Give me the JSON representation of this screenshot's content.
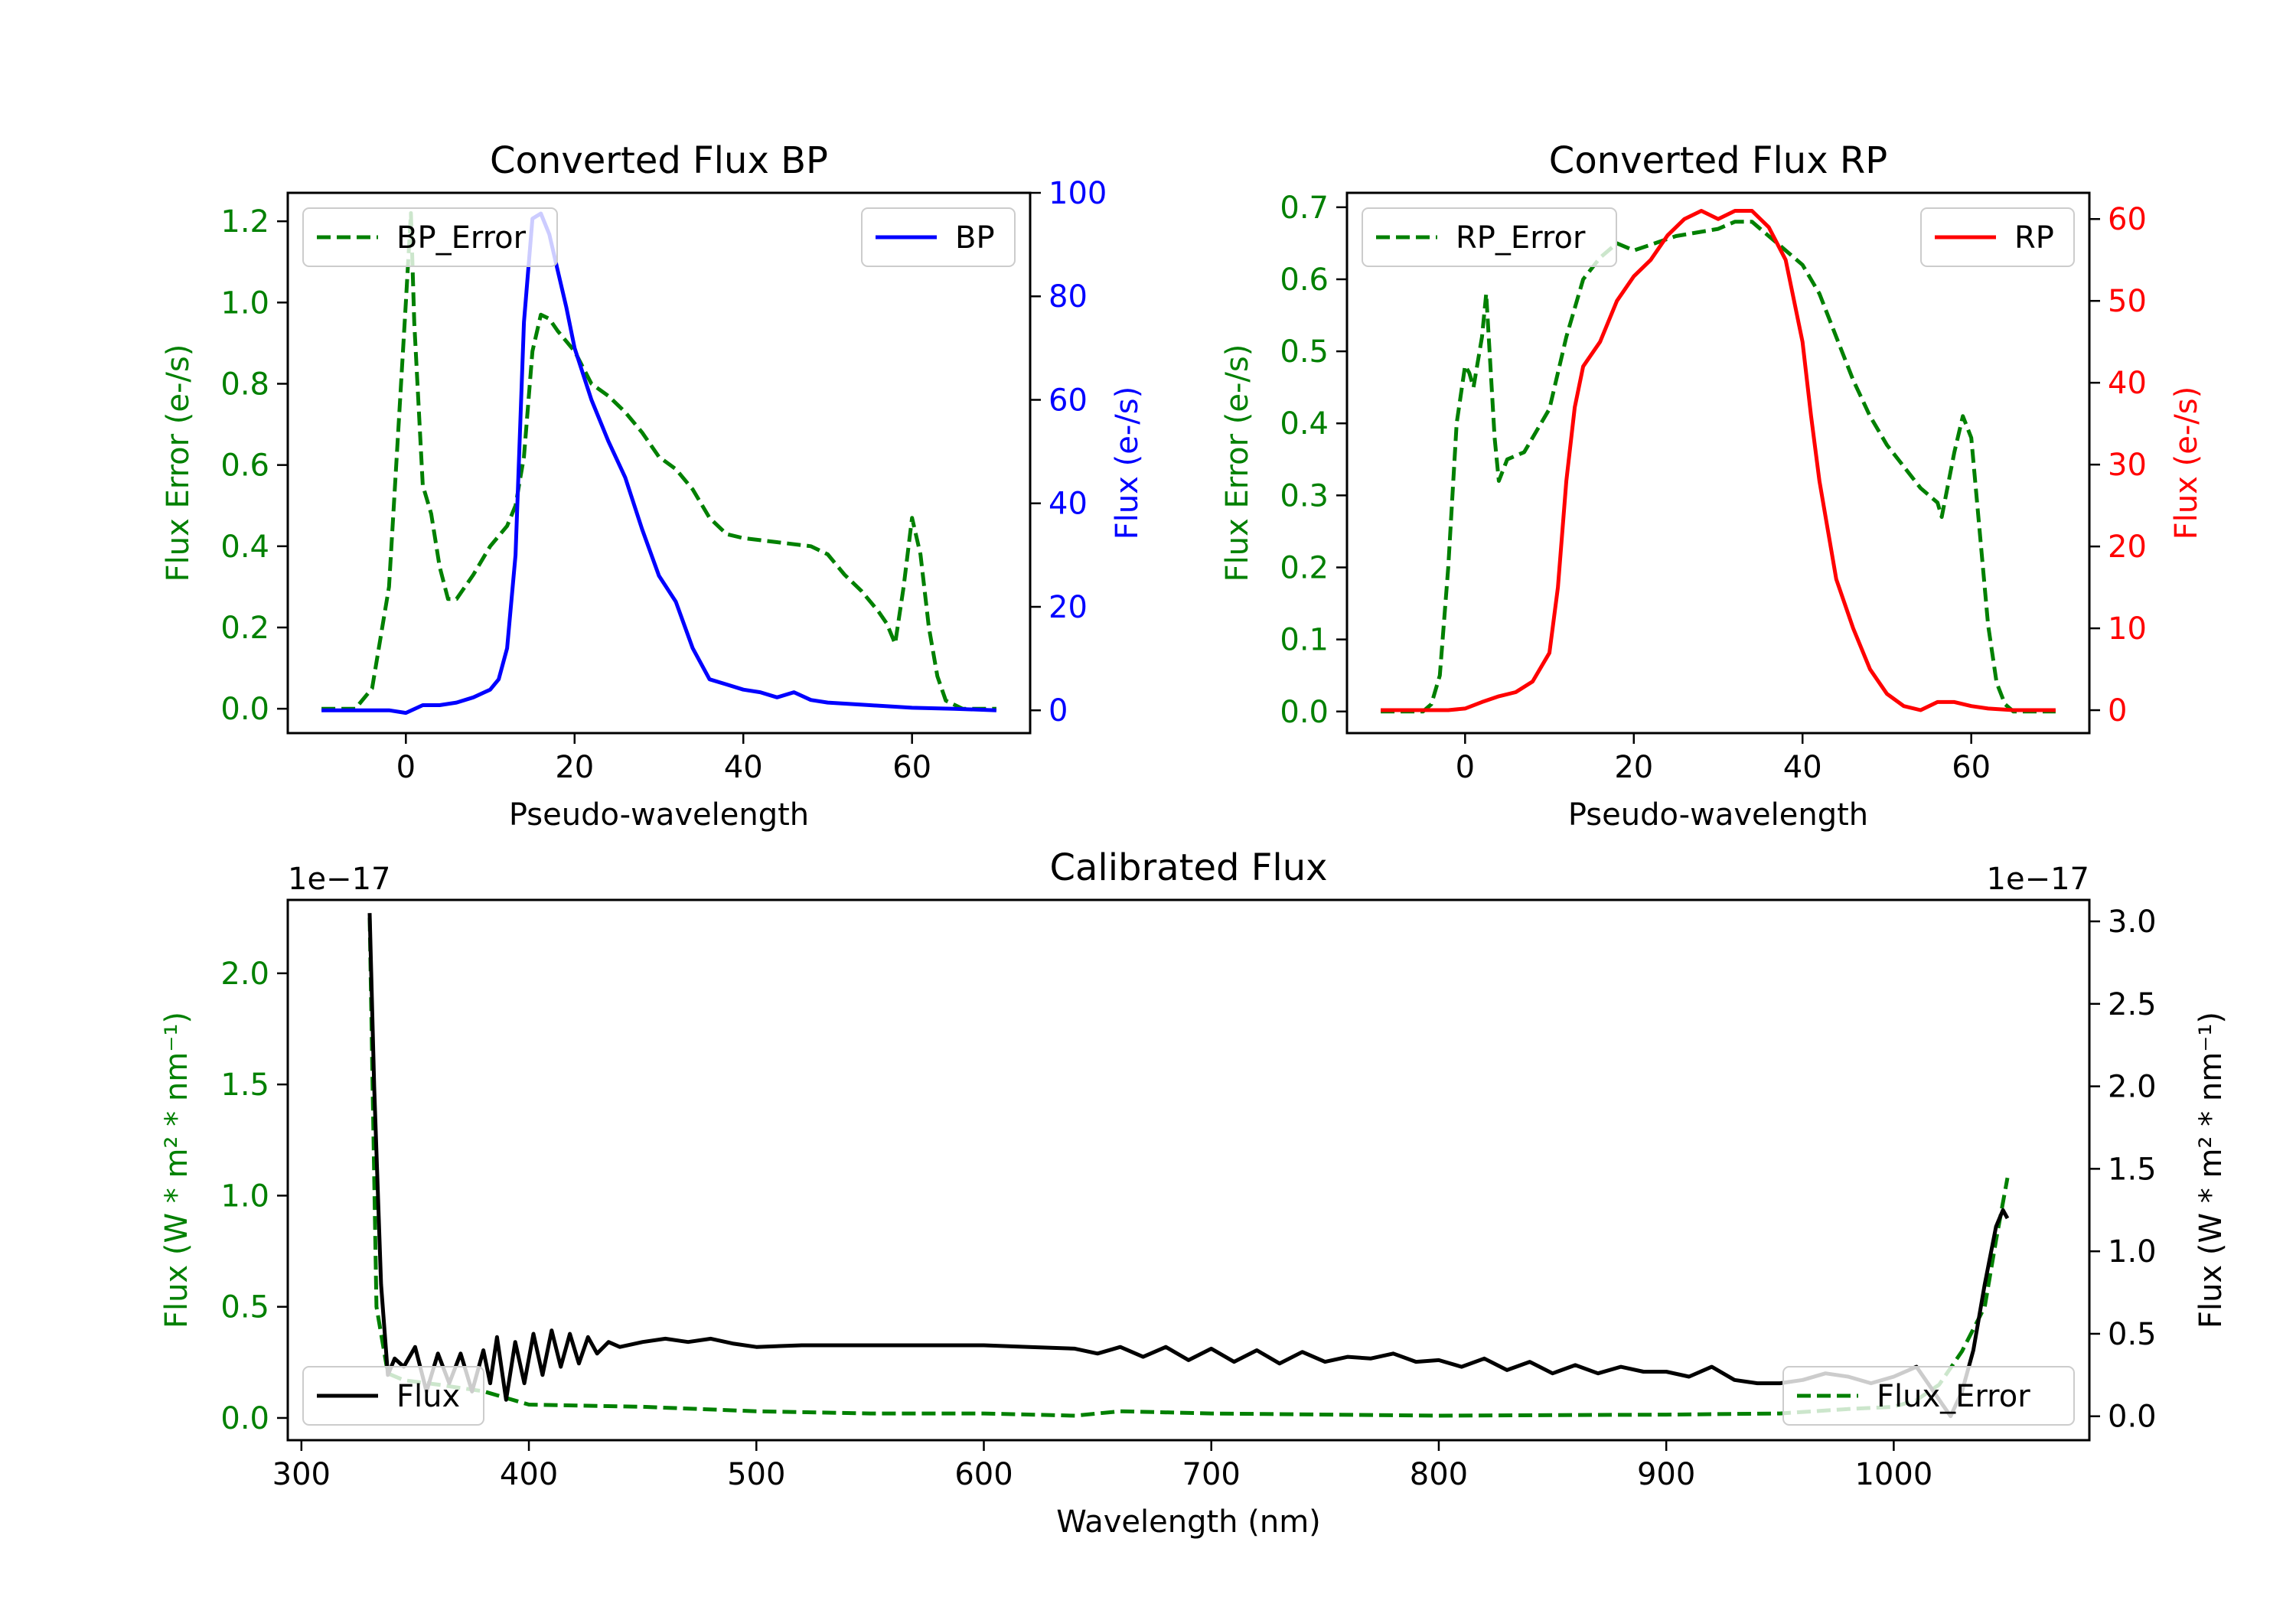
{
  "chart_data": [
    {
      "type": "line",
      "title": "Converted Flux BP",
      "xlabel": "Pseudo-wavelength",
      "xlim": [
        -14,
        74
      ],
      "xticks": [
        0,
        20,
        40,
        60
      ],
      "left_axis": {
        "label": "Flux Error (e-/s)",
        "color": "#008000",
        "ylim": [
          -0.06,
          1.27
        ],
        "ticks": [
          "0.0",
          "0.2",
          "0.4",
          "0.6",
          "0.8",
          "1.0",
          "1.2"
        ]
      },
      "right_axis": {
        "label": "Flux (e-/s)",
        "color": "#0000ff",
        "ylim": [
          -4.4,
          100
        ],
        "ticks": [
          "0",
          "20",
          "40",
          "60",
          "80",
          "100"
        ]
      },
      "legend_left": {
        "label": "BP_Error",
        "position": "upper left"
      },
      "legend_right": {
        "label": "BP",
        "position": "upper right"
      },
      "series": [
        {
          "name": "BP_Error",
          "axis": "left",
          "color": "#008000",
          "style": "dashed",
          "x": [
            -10,
            -6,
            -4,
            -2,
            -1,
            0,
            0.6,
            1,
            2,
            3,
            4,
            5,
            6,
            8,
            10,
            12,
            13,
            14,
            15,
            16,
            17,
            18,
            20,
            22,
            24,
            26,
            28,
            30,
            32,
            34,
            36,
            38,
            40,
            44,
            48,
            50,
            52,
            54,
            56,
            57,
            58,
            59,
            60,
            61,
            62,
            63,
            64,
            66,
            70
          ],
          "y": [
            0,
            0,
            0.05,
            0.3,
            0.65,
            1.0,
            1.22,
            0.95,
            0.55,
            0.48,
            0.35,
            0.27,
            0.27,
            0.33,
            0.4,
            0.45,
            0.5,
            0.62,
            0.88,
            0.97,
            0.96,
            0.93,
            0.88,
            0.8,
            0.77,
            0.73,
            0.68,
            0.62,
            0.59,
            0.54,
            0.47,
            0.43,
            0.42,
            0.41,
            0.4,
            0.38,
            0.33,
            0.29,
            0.24,
            0.21,
            0.16,
            0.3,
            0.47,
            0.38,
            0.2,
            0.08,
            0.02,
            0.0,
            0.0
          ]
        },
        {
          "name": "BP",
          "axis": "right",
          "color": "#0000ff",
          "style": "solid",
          "x": [
            -10,
            -5,
            -2,
            0,
            2,
            4,
            6,
            8,
            10,
            11,
            12,
            13,
            14,
            15,
            16,
            17,
            18,
            19,
            20,
            22,
            24,
            26,
            28,
            30,
            32,
            34,
            36,
            38,
            40,
            42,
            44,
            46,
            48,
            50,
            55,
            60,
            65,
            70
          ],
          "y": [
            0,
            0,
            0,
            -0.5,
            1,
            1,
            1.5,
            2.5,
            4,
            6,
            12,
            30,
            75,
            95,
            96,
            92,
            85,
            78,
            70,
            60,
            52,
            45,
            35,
            26,
            21,
            12,
            6,
            5,
            4,
            3.5,
            2.5,
            3.5,
            2,
            1.5,
            1,
            0.5,
            0.3,
            0
          ]
        }
      ]
    },
    {
      "type": "line",
      "title": "Converted Flux RP",
      "xlabel": "Pseudo-wavelength",
      "xlim": [
        -14,
        74
      ],
      "xticks": [
        0,
        20,
        40,
        60
      ],
      "left_axis": {
        "label": "Flux Error (e-/s)",
        "color": "#008000",
        "ylim": [
          -0.03,
          0.72
        ],
        "ticks": [
          "0.0",
          "0.1",
          "0.2",
          "0.3",
          "0.4",
          "0.5",
          "0.6",
          "0.7"
        ]
      },
      "right_axis": {
        "label": "Flux (e-/s)",
        "color": "#ff0000",
        "ylim": [
          -2.8,
          63.2
        ],
        "ticks": [
          "0",
          "10",
          "20",
          "30",
          "40",
          "50",
          "60"
        ]
      },
      "legend_left": {
        "label": "RP_Error",
        "position": "upper left"
      },
      "legend_right": {
        "label": "RP",
        "position": "upper right"
      },
      "series": [
        {
          "name": "RP_Error",
          "axis": "left",
          "color": "#008000",
          "style": "dashed",
          "x": [
            -10,
            -5,
            -4,
            -3,
            -2,
            -1,
            0,
            0.5,
            1,
            2,
            2.5,
            3,
            3.5,
            4,
            5,
            7,
            9,
            10,
            12,
            14,
            16,
            18,
            20,
            25,
            30,
            32,
            34,
            36,
            38,
            40,
            42,
            44,
            46,
            48,
            50,
            52,
            54,
            55,
            56,
            56.5,
            57,
            58,
            59,
            60,
            61,
            62,
            63,
            64,
            65,
            70
          ],
          "y": [
            0,
            0,
            0.01,
            0.05,
            0.2,
            0.4,
            0.48,
            0.47,
            0.45,
            0.52,
            0.58,
            0.48,
            0.38,
            0.32,
            0.35,
            0.36,
            0.4,
            0.42,
            0.52,
            0.6,
            0.63,
            0.65,
            0.64,
            0.66,
            0.67,
            0.68,
            0.68,
            0.66,
            0.64,
            0.62,
            0.58,
            0.52,
            0.46,
            0.41,
            0.37,
            0.34,
            0.31,
            0.3,
            0.29,
            0.27,
            0.3,
            0.36,
            0.41,
            0.38,
            0.25,
            0.12,
            0.04,
            0.01,
            0.0,
            0.0
          ]
        },
        {
          "name": "RP",
          "axis": "right",
          "color": "#ff0000",
          "style": "solid",
          "x": [
            -10,
            -2,
            0,
            2,
            4,
            6,
            8,
            10,
            11,
            12,
            13,
            14,
            16,
            18,
            20,
            22,
            24,
            26,
            28,
            30,
            32,
            34,
            36,
            38,
            40,
            41,
            42,
            43,
            44,
            46,
            48,
            50,
            52,
            54,
            56,
            58,
            60,
            62,
            65,
            70
          ],
          "y": [
            0,
            0,
            0.2,
            1,
            1.7,
            2.2,
            3.5,
            7,
            15,
            28,
            37,
            42,
            45,
            50,
            53,
            55,
            58,
            60,
            61,
            60,
            61,
            61,
            59,
            55,
            45,
            36,
            28,
            22,
            16,
            10,
            5,
            2,
            0.5,
            0,
            1,
            1,
            0.5,
            0.2,
            0,
            0
          ]
        }
      ]
    },
    {
      "type": "line",
      "title": "Calibrated Flux",
      "xlabel": "Wavelength (nm)",
      "xlim": [
        294,
        1086
      ],
      "xticks": [
        300,
        400,
        500,
        600,
        700,
        800,
        900,
        1000
      ],
      "left_axis": {
        "label": "Flux (W * m² * nm⁻¹)",
        "color": "#008000",
        "offset_text": "1e−17",
        "ylim": [
          -0.1,
          2.33
        ],
        "ticks": [
          "0.0",
          "0.5",
          "1.0",
          "1.5",
          "2.0"
        ]
      },
      "right_axis": {
        "label": "Flux (W * m² * nm⁻¹)",
        "color": "#000000",
        "offset_text": "1e−17",
        "ylim": [
          -0.145,
          3.13
        ],
        "ticks": [
          "0.0",
          "0.5",
          "1.0",
          "1.5",
          "2.0",
          "2.5",
          "3.0"
        ]
      },
      "legend_left": {
        "label": "Flux",
        "position": "lower left"
      },
      "legend_right": {
        "label": "Flux_Error",
        "position": "lower right"
      },
      "series": [
        {
          "name": "Flux_Error",
          "axis": "left",
          "color": "#008000",
          "style": "dashed",
          "x": [
            330,
            333,
            338,
            345,
            360,
            380,
            400,
            450,
            500,
            550,
            600,
            640,
            660,
            700,
            800,
            900,
            950,
            980,
            1000,
            1010,
            1020,
            1030,
            1040,
            1045,
            1050
          ],
          "y": [
            2.25,
            0.5,
            0.2,
            0.17,
            0.15,
            0.12,
            0.06,
            0.05,
            0.03,
            0.02,
            0.02,
            0.01,
            0.03,
            0.02,
            0.01,
            0.015,
            0.02,
            0.04,
            0.05,
            0.08,
            0.15,
            0.3,
            0.5,
            0.8,
            1.08
          ]
        },
        {
          "name": "Flux",
          "axis": "right",
          "color": "#000000",
          "style": "solid",
          "x": [
            330,
            332,
            335,
            338,
            341,
            345,
            350,
            355,
            360,
            365,
            370,
            375,
            380,
            383,
            386,
            390,
            394,
            398,
            402,
            406,
            410,
            414,
            418,
            422,
            426,
            430,
            435,
            440,
            450,
            460,
            470,
            480,
            490,
            500,
            520,
            550,
            580,
            600,
            620,
            640,
            650,
            660,
            670,
            680,
            690,
            700,
            710,
            720,
            730,
            740,
            750,
            760,
            770,
            780,
            790,
            800,
            810,
            820,
            830,
            840,
            850,
            860,
            870,
            880,
            890,
            900,
            910,
            920,
            930,
            940,
            950,
            960,
            970,
            980,
            990,
            1000,
            1010,
            1015,
            1020,
            1025,
            1030,
            1035,
            1040,
            1045,
            1048,
            1050
          ],
          "y": [
            3.05,
            2.0,
            0.8,
            0.25,
            0.35,
            0.3,
            0.42,
            0.15,
            0.38,
            0.2,
            0.38,
            0.15,
            0.4,
            0.2,
            0.48,
            0.1,
            0.45,
            0.2,
            0.5,
            0.25,
            0.52,
            0.3,
            0.5,
            0.32,
            0.48,
            0.38,
            0.45,
            0.42,
            0.45,
            0.47,
            0.45,
            0.47,
            0.44,
            0.42,
            0.43,
            0.43,
            0.43,
            0.43,
            0.42,
            0.41,
            0.38,
            0.42,
            0.36,
            0.42,
            0.34,
            0.41,
            0.33,
            0.4,
            0.32,
            0.39,
            0.33,
            0.36,
            0.35,
            0.38,
            0.33,
            0.34,
            0.3,
            0.35,
            0.28,
            0.33,
            0.26,
            0.31,
            0.26,
            0.3,
            0.27,
            0.27,
            0.24,
            0.3,
            0.22,
            0.2,
            0.2,
            0.22,
            0.26,
            0.24,
            0.2,
            0.24,
            0.3,
            0.2,
            0.1,
            0.0,
            0.15,
            0.4,
            0.8,
            1.15,
            1.25,
            1.2
          ]
        }
      ]
    }
  ]
}
